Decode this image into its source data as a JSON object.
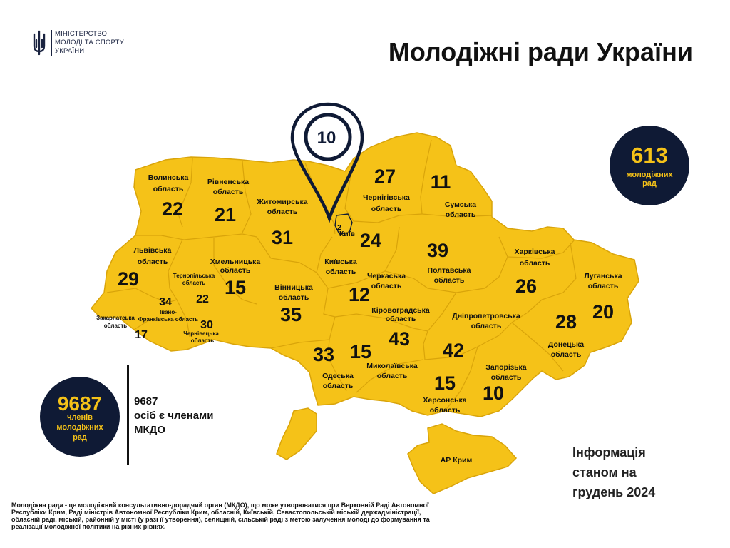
{
  "ministry": {
    "line1": "МІНІСТЕРСТВО",
    "line2": "МОЛОДІ ТА СПОРТУ",
    "line3": "УКРАЇНИ"
  },
  "title": "Молодіжні ради України",
  "pin_value": "10",
  "total_councils": {
    "value": "613",
    "label_line1": "молодіжних",
    "label_line2": "рад"
  },
  "total_members": {
    "value": "9687",
    "label_line1": "членів",
    "label_line2": "молодіжних",
    "label_line3": "рад"
  },
  "members_text": {
    "line1": "9687",
    "line2": "осіб є членами",
    "line3": "МКДО"
  },
  "info_date": {
    "line1": "Інформація",
    "line2": "станом на",
    "line3": "грудень 2024"
  },
  "footnote": "Молодіжна рада - це молодіжний консультативно-дорадчий орган (МКДО), що може утворюватися при Верховній Раді Автономної Республіки Крим, Раді міністрів Автономної Республіки Крим, обласній, Київській, Севастопольській міській держадміністрації, обласній раді, міській, районній у місті (у разі її утворення), селищній, сільській раді з метою залучення молоді до формування та реалізації молодіжної політики на різних рівнях.",
  "colors": {
    "map_fill": "#f5c218",
    "dark_navy": "#0f1a35",
    "border": "#d9a40a"
  },
  "regions": [
    {
      "name_1": "Волинська",
      "name_2": "область",
      "count": "22"
    },
    {
      "name_1": "Рівненська",
      "name_2": "область",
      "count": "21"
    },
    {
      "name_1": "Житомирська",
      "name_2": "область",
      "count": "31"
    },
    {
      "name_1": "Чернігівська",
      "name_2": "область",
      "count": "27"
    },
    {
      "name_1": "Сумська",
      "name_2": "область",
      "count": "11"
    },
    {
      "name_1": "Київ",
      "name_2": "",
      "count": "2"
    },
    {
      "name_1": "Київська",
      "name_2": "область",
      "count": "24"
    },
    {
      "name_1": "Львівська",
      "name_2": "область",
      "count": "29"
    },
    {
      "name_1": "Хмельницька",
      "name_2": "область",
      "count": "15"
    },
    {
      "name_1": "Тернопільська",
      "name_2": "область",
      "count": "22"
    },
    {
      "name_1": "Івано-",
      "name_2": "Франківська область",
      "count": "34"
    },
    {
      "name_1": "Закарпатська",
      "name_2": "область",
      "count": "17"
    },
    {
      "name_1": "Чернівецька",
      "name_2": "область",
      "count": "30"
    },
    {
      "name_1": "Вінницька",
      "name_2": "область",
      "count": "35"
    },
    {
      "name_1": "Черкаська",
      "name_2": "область",
      "count": "12"
    },
    {
      "name_1": "Полтавська",
      "name_2": "область",
      "count": "39"
    },
    {
      "name_1": "Харківська",
      "name_2": "область",
      "count": "26"
    },
    {
      "name_1": "Луганська",
      "name_2": "область",
      "count": "20"
    },
    {
      "name_1": "Кіровоградська",
      "name_2": "область",
      "count": "43"
    },
    {
      "name_1": "Дніпропетровська",
      "name_2": "область",
      "count": "42"
    },
    {
      "name_1": "Донецька",
      "name_2": "область",
      "count": "28"
    },
    {
      "name_1": "Одеська",
      "name_2": "область",
      "count": "33"
    },
    {
      "name_1": "Миколаївська",
      "name_2": "область",
      "count": "15"
    },
    {
      "name_1": "Херсонська",
      "name_2": "область",
      "count": "15"
    },
    {
      "name_1": "Запорізька",
      "name_2": "область",
      "count": "10"
    },
    {
      "name_1": "АР Крим",
      "name_2": "",
      "count": ""
    }
  ]
}
